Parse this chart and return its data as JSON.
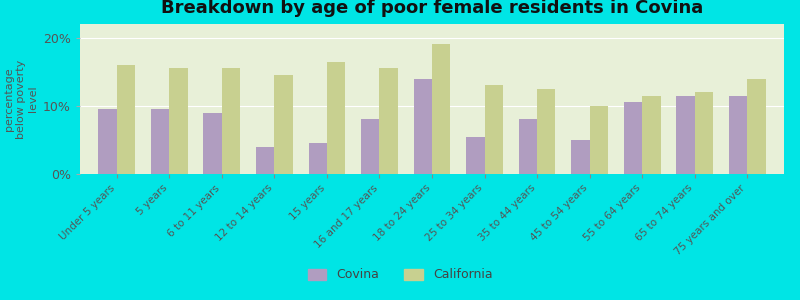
{
  "title": "Breakdown by age of poor female residents in Covina",
  "ylabel": "percentage\nbelow poverty\nlevel",
  "categories": [
    "Under 5 years",
    "5 years",
    "6 to 11 years",
    "12 to 14 years",
    "15 years",
    "16 and 17 years",
    "18 to 24 years",
    "25 to 34 years",
    "35 to 44 years",
    "45 to 54 years",
    "55 to 64 years",
    "65 to 74 years",
    "75 years and over"
  ],
  "covina_values": [
    9.5,
    9.5,
    9.0,
    4.0,
    4.5,
    8.0,
    14.0,
    5.5,
    8.0,
    5.0,
    10.5,
    11.5,
    11.5
  ],
  "california_values": [
    16.0,
    15.5,
    15.5,
    14.5,
    16.5,
    15.5,
    19.0,
    13.0,
    12.5,
    10.0,
    11.5,
    12.0,
    14.0
  ],
  "covina_color": "#b09dc0",
  "california_color": "#c8d090",
  "background_color": "#00e5e5",
  "plot_bg_color": "#e8f0d8",
  "ylim": [
    0,
    22
  ],
  "yticks": [
    0,
    10,
    20
  ],
  "ytick_labels": [
    "0%",
    "10%",
    "20%"
  ],
  "bar_width": 0.35,
  "title_fontsize": 13,
  "legend_labels": [
    "Covina",
    "California"
  ]
}
